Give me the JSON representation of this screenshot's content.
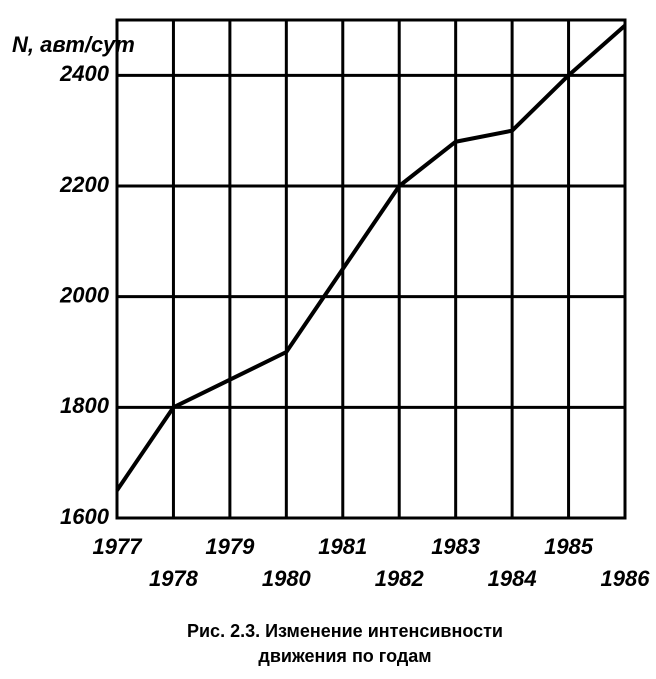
{
  "chart_data": {
    "type": "line",
    "y_label": "N, авт/сут",
    "caption": [
      "Рис. 2.3. Изменение интенсивности",
      "движения по годам"
    ],
    "x": [
      1977,
      1978,
      1979,
      1980,
      1981,
      1982,
      1983,
      1984,
      1985,
      1986
    ],
    "series": [
      {
        "color": "#000000",
        "values": [
          1650,
          1800,
          1850,
          1900,
          2050,
          2200,
          2280,
          2300,
          2400,
          2490
        ]
      }
    ],
    "xlim": [
      1977,
      1986
    ],
    "xticks": [
      1977,
      1978,
      1979,
      1980,
      1981,
      1982,
      1983,
      1984,
      1985,
      1986
    ],
    "ylim": [
      1600,
      2500
    ],
    "yticks": [
      1600,
      1800,
      2000,
      2200,
      2400
    ],
    "grid": true
  }
}
